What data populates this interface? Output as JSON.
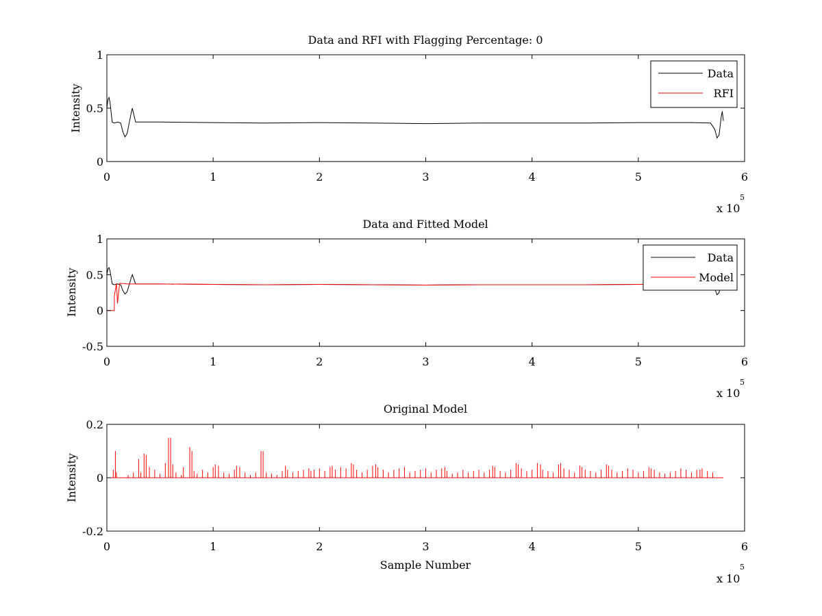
{
  "chart_data": [
    {
      "type": "line",
      "title": "Data and RFI with Flagging Percentage: 0",
      "xlabel": "",
      "ylabel": "Intensity",
      "xlim": [
        0,
        6
      ],
      "ylim": [
        0,
        1
      ],
      "x_exponent_label": "x 10",
      "x_exponent": "5",
      "xticks": [
        "0",
        "1",
        "2",
        "3",
        "4",
        "5",
        "6"
      ],
      "yticks": [
        "0",
        "0.5",
        "1"
      ],
      "legend_position": "top-right",
      "legend": [
        "Data",
        "RFI"
      ],
      "series": [
        {
          "name": "Data",
          "color": "#000000",
          "x": [
            0,
            0.01,
            0.02,
            0.03,
            0.05,
            0.07,
            0.1,
            0.13,
            0.15,
            0.17,
            0.19,
            0.21,
            0.23,
            0.24,
            0.27,
            0.5,
            1,
            1.5,
            2,
            2.5,
            3,
            3.5,
            4,
            4.5,
            5,
            5.5,
            5.68,
            5.72,
            5.74,
            5.76,
            5.78,
            5.79,
            5.8
          ],
          "values": [
            0.5,
            0.58,
            0.6,
            0.55,
            0.37,
            0.36,
            0.37,
            0.36,
            0.28,
            0.23,
            0.26,
            0.36,
            0.46,
            0.5,
            0.37,
            0.37,
            0.365,
            0.36,
            0.365,
            0.36,
            0.355,
            0.36,
            0.36,
            0.36,
            0.365,
            0.365,
            0.36,
            0.3,
            0.22,
            0.25,
            0.42,
            0.47,
            0.38
          ]
        },
        {
          "name": "RFI",
          "color": "#ff0000",
          "x": [],
          "values": []
        }
      ]
    },
    {
      "type": "line",
      "title": "Data and Fitted Model",
      "xlabel": "",
      "ylabel": "Intensity",
      "xlim": [
        0,
        6
      ],
      "ylim": [
        -0.5,
        1
      ],
      "x_exponent_label": "x 10",
      "x_exponent": "5",
      "xticks": [
        "0",
        "1",
        "2",
        "3",
        "4",
        "5",
        "6"
      ],
      "yticks": [
        "-0.5",
        "0",
        "0.5",
        "1"
      ],
      "legend_position": "top-right",
      "legend": [
        "Data",
        "Model"
      ],
      "series": [
        {
          "name": "Data",
          "color": "#000000",
          "x": [
            0,
            0.01,
            0.02,
            0.03,
            0.05,
            0.07,
            0.1,
            0.13,
            0.15,
            0.17,
            0.19,
            0.21,
            0.23,
            0.24,
            0.27,
            0.5,
            1,
            1.5,
            2,
            2.5,
            3,
            3.5,
            4,
            4.5,
            5,
            5.5,
            5.68,
            5.72,
            5.74,
            5.76,
            5.78,
            5.79,
            5.8
          ],
          "values": [
            0.5,
            0.58,
            0.6,
            0.55,
            0.37,
            0.36,
            0.37,
            0.36,
            0.28,
            0.23,
            0.26,
            0.36,
            0.46,
            0.5,
            0.37,
            0.37,
            0.365,
            0.36,
            0.365,
            0.36,
            0.355,
            0.36,
            0.36,
            0.36,
            0.365,
            0.365,
            0.36,
            0.3,
            0.22,
            0.25,
            0.42,
            0.47,
            0.38
          ]
        },
        {
          "name": "Model",
          "color": "#ff0000",
          "x": [
            0,
            0.07,
            0.07,
            0.09,
            0.1,
            0.12,
            0.2,
            0.5,
            1,
            1.5,
            2,
            2.5,
            3,
            3.5,
            4,
            4.5,
            5,
            5.5,
            5.8
          ],
          "values": [
            0,
            0,
            0.2,
            0.38,
            0.1,
            0.38,
            0.37,
            0.37,
            0.365,
            0.36,
            0.365,
            0.36,
            0.355,
            0.36,
            0.36,
            0.36,
            0.365,
            0.365,
            0.36
          ]
        }
      ]
    },
    {
      "type": "line",
      "title": "Original Model",
      "xlabel": "Sample Number",
      "ylabel": "Intensity",
      "xlim": [
        0,
        6
      ],
      "ylim": [
        -0.2,
        0.2
      ],
      "x_exponent_label": "x 10",
      "x_exponent": "5",
      "xticks": [
        "0",
        "1",
        "2",
        "3",
        "4",
        "5",
        "6"
      ],
      "yticks": [
        "-0.2",
        "0",
        "0.2"
      ],
      "series": [
        {
          "name": "",
          "color": "#ff0000",
          "x_range": [
            0,
            5.8
          ],
          "baseline": 0,
          "spikes_x": [
            0.06,
            0.08,
            0.09,
            0.2,
            0.25,
            0.3,
            0.32,
            0.35,
            0.37,
            0.4,
            0.45,
            0.5,
            0.55,
            0.58,
            0.6,
            0.62,
            0.65,
            0.7,
            0.72,
            0.78,
            0.8,
            0.82,
            0.85,
            0.9,
            0.95,
            1.0,
            1.02,
            1.05,
            1.1,
            1.15,
            1.2,
            1.22,
            1.25,
            1.3,
            1.35,
            1.4,
            1.45,
            1.47,
            1.5,
            1.55,
            1.6,
            1.65,
            1.68,
            1.7,
            1.75,
            1.8,
            1.85,
            1.9,
            1.92,
            1.95,
            2.0,
            2.05,
            2.1,
            2.12,
            2.15,
            2.2,
            2.25,
            2.3,
            2.32,
            2.35,
            2.4,
            2.45,
            2.5,
            2.53,
            2.55,
            2.6,
            2.65,
            2.7,
            2.75,
            2.8,
            2.85,
            2.9,
            2.95,
            3.0,
            3.05,
            3.1,
            3.15,
            3.18,
            3.2,
            3.25,
            3.3,
            3.35,
            3.4,
            3.45,
            3.5,
            3.55,
            3.6,
            3.63,
            3.65,
            3.7,
            3.75,
            3.8,
            3.85,
            3.87,
            3.9,
            3.95,
            4.0,
            4.05,
            4.08,
            4.1,
            4.15,
            4.2,
            4.25,
            4.27,
            4.3,
            4.35,
            4.4,
            4.45,
            4.47,
            4.5,
            4.55,
            4.6,
            4.65,
            4.7,
            4.72,
            4.75,
            4.8,
            4.85,
            4.9,
            4.95,
            5.0,
            5.05,
            5.1,
            5.12,
            5.15,
            5.2,
            5.25,
            5.3,
            5.35,
            5.4,
            5.45,
            5.5,
            5.55,
            5.58,
            5.6,
            5.65,
            5.7
          ],
          "spikes_y": [
            0.03,
            0.1,
            0.02,
            0.01,
            0.02,
            0.07,
            0.02,
            0.09,
            0.085,
            0.04,
            0.03,
            0.015,
            0.055,
            0.15,
            0.15,
            0.05,
            0.02,
            0.01,
            0.04,
            0.115,
            0.1,
            0.025,
            0.015,
            0.03,
            0.02,
            0.04,
            0.05,
            0.045,
            0.02,
            0.015,
            0.03,
            0.045,
            0.04,
            0.02,
            0.01,
            0.02,
            0.1,
            0.1,
            0.02,
            0.015,
            0.01,
            0.025,
            0.045,
            0.03,
            0.02,
            0.025,
            0.03,
            0.035,
            0.025,
            0.03,
            0.035,
            0.025,
            0.04,
            0.045,
            0.03,
            0.04,
            0.035,
            0.055,
            0.05,
            0.03,
            0.02,
            0.03,
            0.045,
            0.05,
            0.04,
            0.03,
            0.02,
            0.03,
            0.035,
            0.04,
            0.02,
            0.025,
            0.03,
            0.035,
            0.02,
            0.03,
            0.035,
            0.04,
            0.025,
            0.015,
            0.02,
            0.03,
            0.02,
            0.025,
            0.03,
            0.02,
            0.03,
            0.045,
            0.04,
            0.025,
            0.02,
            0.03,
            0.055,
            0.05,
            0.035,
            0.025,
            0.03,
            0.055,
            0.05,
            0.03,
            0.025,
            0.02,
            0.05,
            0.055,
            0.035,
            0.03,
            0.02,
            0.045,
            0.04,
            0.03,
            0.025,
            0.02,
            0.03,
            0.05,
            0.045,
            0.03,
            0.02,
            0.025,
            0.035,
            0.03,
            0.02,
            0.025,
            0.04,
            0.035,
            0.03,
            0.02,
            0.015,
            0.02,
            0.025,
            0.035,
            0.03,
            0.02,
            0.03,
            0.03,
            0.035,
            0.025,
            0.02
          ]
        }
      ]
    }
  ]
}
